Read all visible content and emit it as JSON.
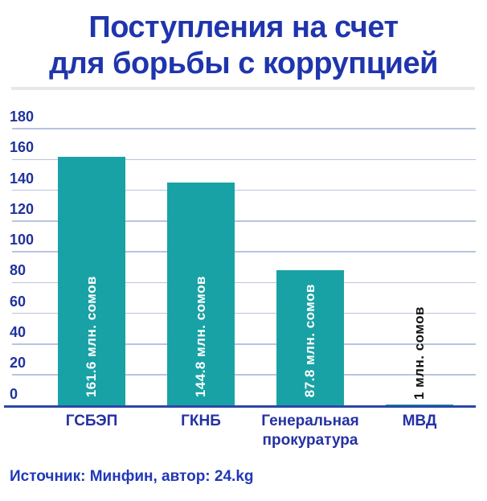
{
  "header": {
    "title_line1": "Поступления на счет",
    "title_line2": "для борьбы с коррупцией"
  },
  "chart_data": {
    "type": "bar",
    "title": "Поступления на счет для борьбы с коррупцией",
    "categories": [
      "ГСБЭП",
      "ГКНБ",
      "Генеральная прокуратура",
      "МВД"
    ],
    "values": [
      161.6,
      144.8,
      87.8,
      1
    ],
    "bar_labels": [
      "161.6 млн. сомов",
      "144.8 млн. сомов",
      "87.8 млн. сомов",
      "1 млн. сомов"
    ],
    "label_inside": [
      true,
      true,
      true,
      false
    ],
    "unit": "млн. сомов",
    "xlabel": "",
    "ylabel": "",
    "ylim": [
      0,
      180
    ],
    "yticks": [
      180,
      160,
      140,
      120,
      100,
      80,
      60,
      40,
      20,
      0
    ],
    "grid": true,
    "legend": false
  },
  "footer": {
    "source": "Источник: Минфин, автор: 24.kg"
  },
  "colors": {
    "title": "#1f35ad",
    "tick_label": "#20339c",
    "category_label": "#2432a4",
    "bar": "#19a2a6",
    "bar_label_inside": "#ffffff",
    "bar_label_outside": "#111111",
    "gridline": "#b8c3de",
    "axis_line": "#2c47a8",
    "divider": "#e8e8e8",
    "source": "#2138b8"
  }
}
